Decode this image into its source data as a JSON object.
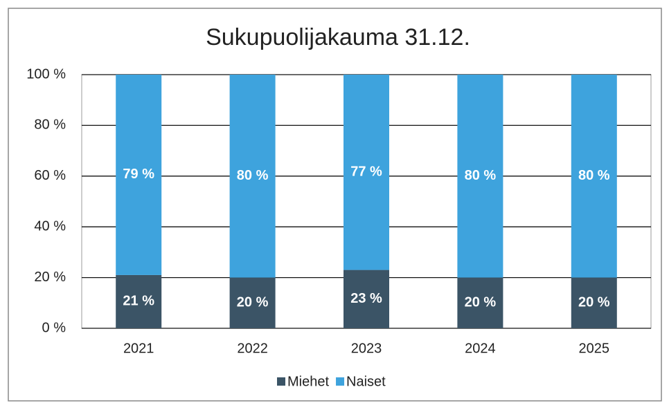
{
  "chart_data": {
    "type": "stacked_bar",
    "title": "Sukupuolijakauma 31.12.",
    "categories": [
      "2021",
      "2022",
      "2023",
      "2024",
      "2025"
    ],
    "series": [
      {
        "name": "Miehet",
        "color": "#3b5466",
        "values": [
          21,
          20,
          23,
          20,
          20
        ],
        "value_labels": [
          "21 %",
          "20 %",
          "23 %",
          "20 %",
          "20 %"
        ]
      },
      {
        "name": "Naiset",
        "color": "#3ea3dd",
        "values": [
          79,
          80,
          77,
          80,
          80
        ],
        "value_labels": [
          "79 %",
          "80 %",
          "77 %",
          "80 %",
          "80 %"
        ]
      }
    ],
    "ylim": [
      0,
      100
    ],
    "yticks": [
      {
        "value": 0,
        "label": "0 %"
      },
      {
        "value": 20,
        "label": "20 %"
      },
      {
        "value": 40,
        "label": "40 %"
      },
      {
        "value": 60,
        "label": "60 %"
      },
      {
        "value": 80,
        "label": "80 %"
      },
      {
        "value": 100,
        "label": "100 %"
      }
    ],
    "grid": true,
    "legend": "bottom"
  }
}
